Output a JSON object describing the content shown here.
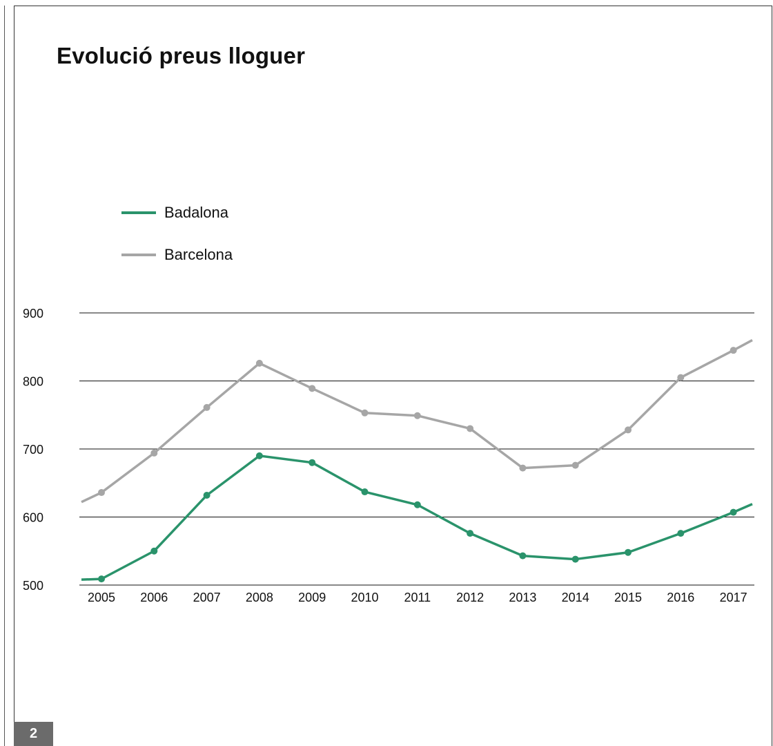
{
  "page_number": "2",
  "colors": {
    "Badalona": "#2a936b",
    "Barcelona": "#a6a6a6"
  },
  "chart_data": {
    "type": "line",
    "title": "Evolució preus lloguer",
    "xlabel": "",
    "ylabel": "",
    "categories": [
      "2005",
      "2006",
      "2007",
      "2008",
      "2009",
      "2010",
      "2011",
      "2012",
      "2013",
      "2014",
      "2015",
      "2016",
      "2017"
    ],
    "yticks": [
      "500",
      "600",
      "700",
      "800",
      "900"
    ],
    "ylim": [
      500,
      900
    ],
    "grid": true,
    "legend_position": "top-left",
    "series": [
      {
        "name": "Badalona",
        "values": [
          509,
          550,
          632,
          690,
          680,
          637,
          618,
          576,
          543,
          538,
          548,
          576,
          607
        ],
        "edge_left": 508,
        "edge_right": 619
      },
      {
        "name": "Barcelona",
        "values": [
          636,
          694,
          761,
          826,
          789,
          753,
          749,
          730,
          672,
          676,
          728,
          805,
          845
        ],
        "edge_left": 622,
        "edge_right": 860
      }
    ]
  }
}
